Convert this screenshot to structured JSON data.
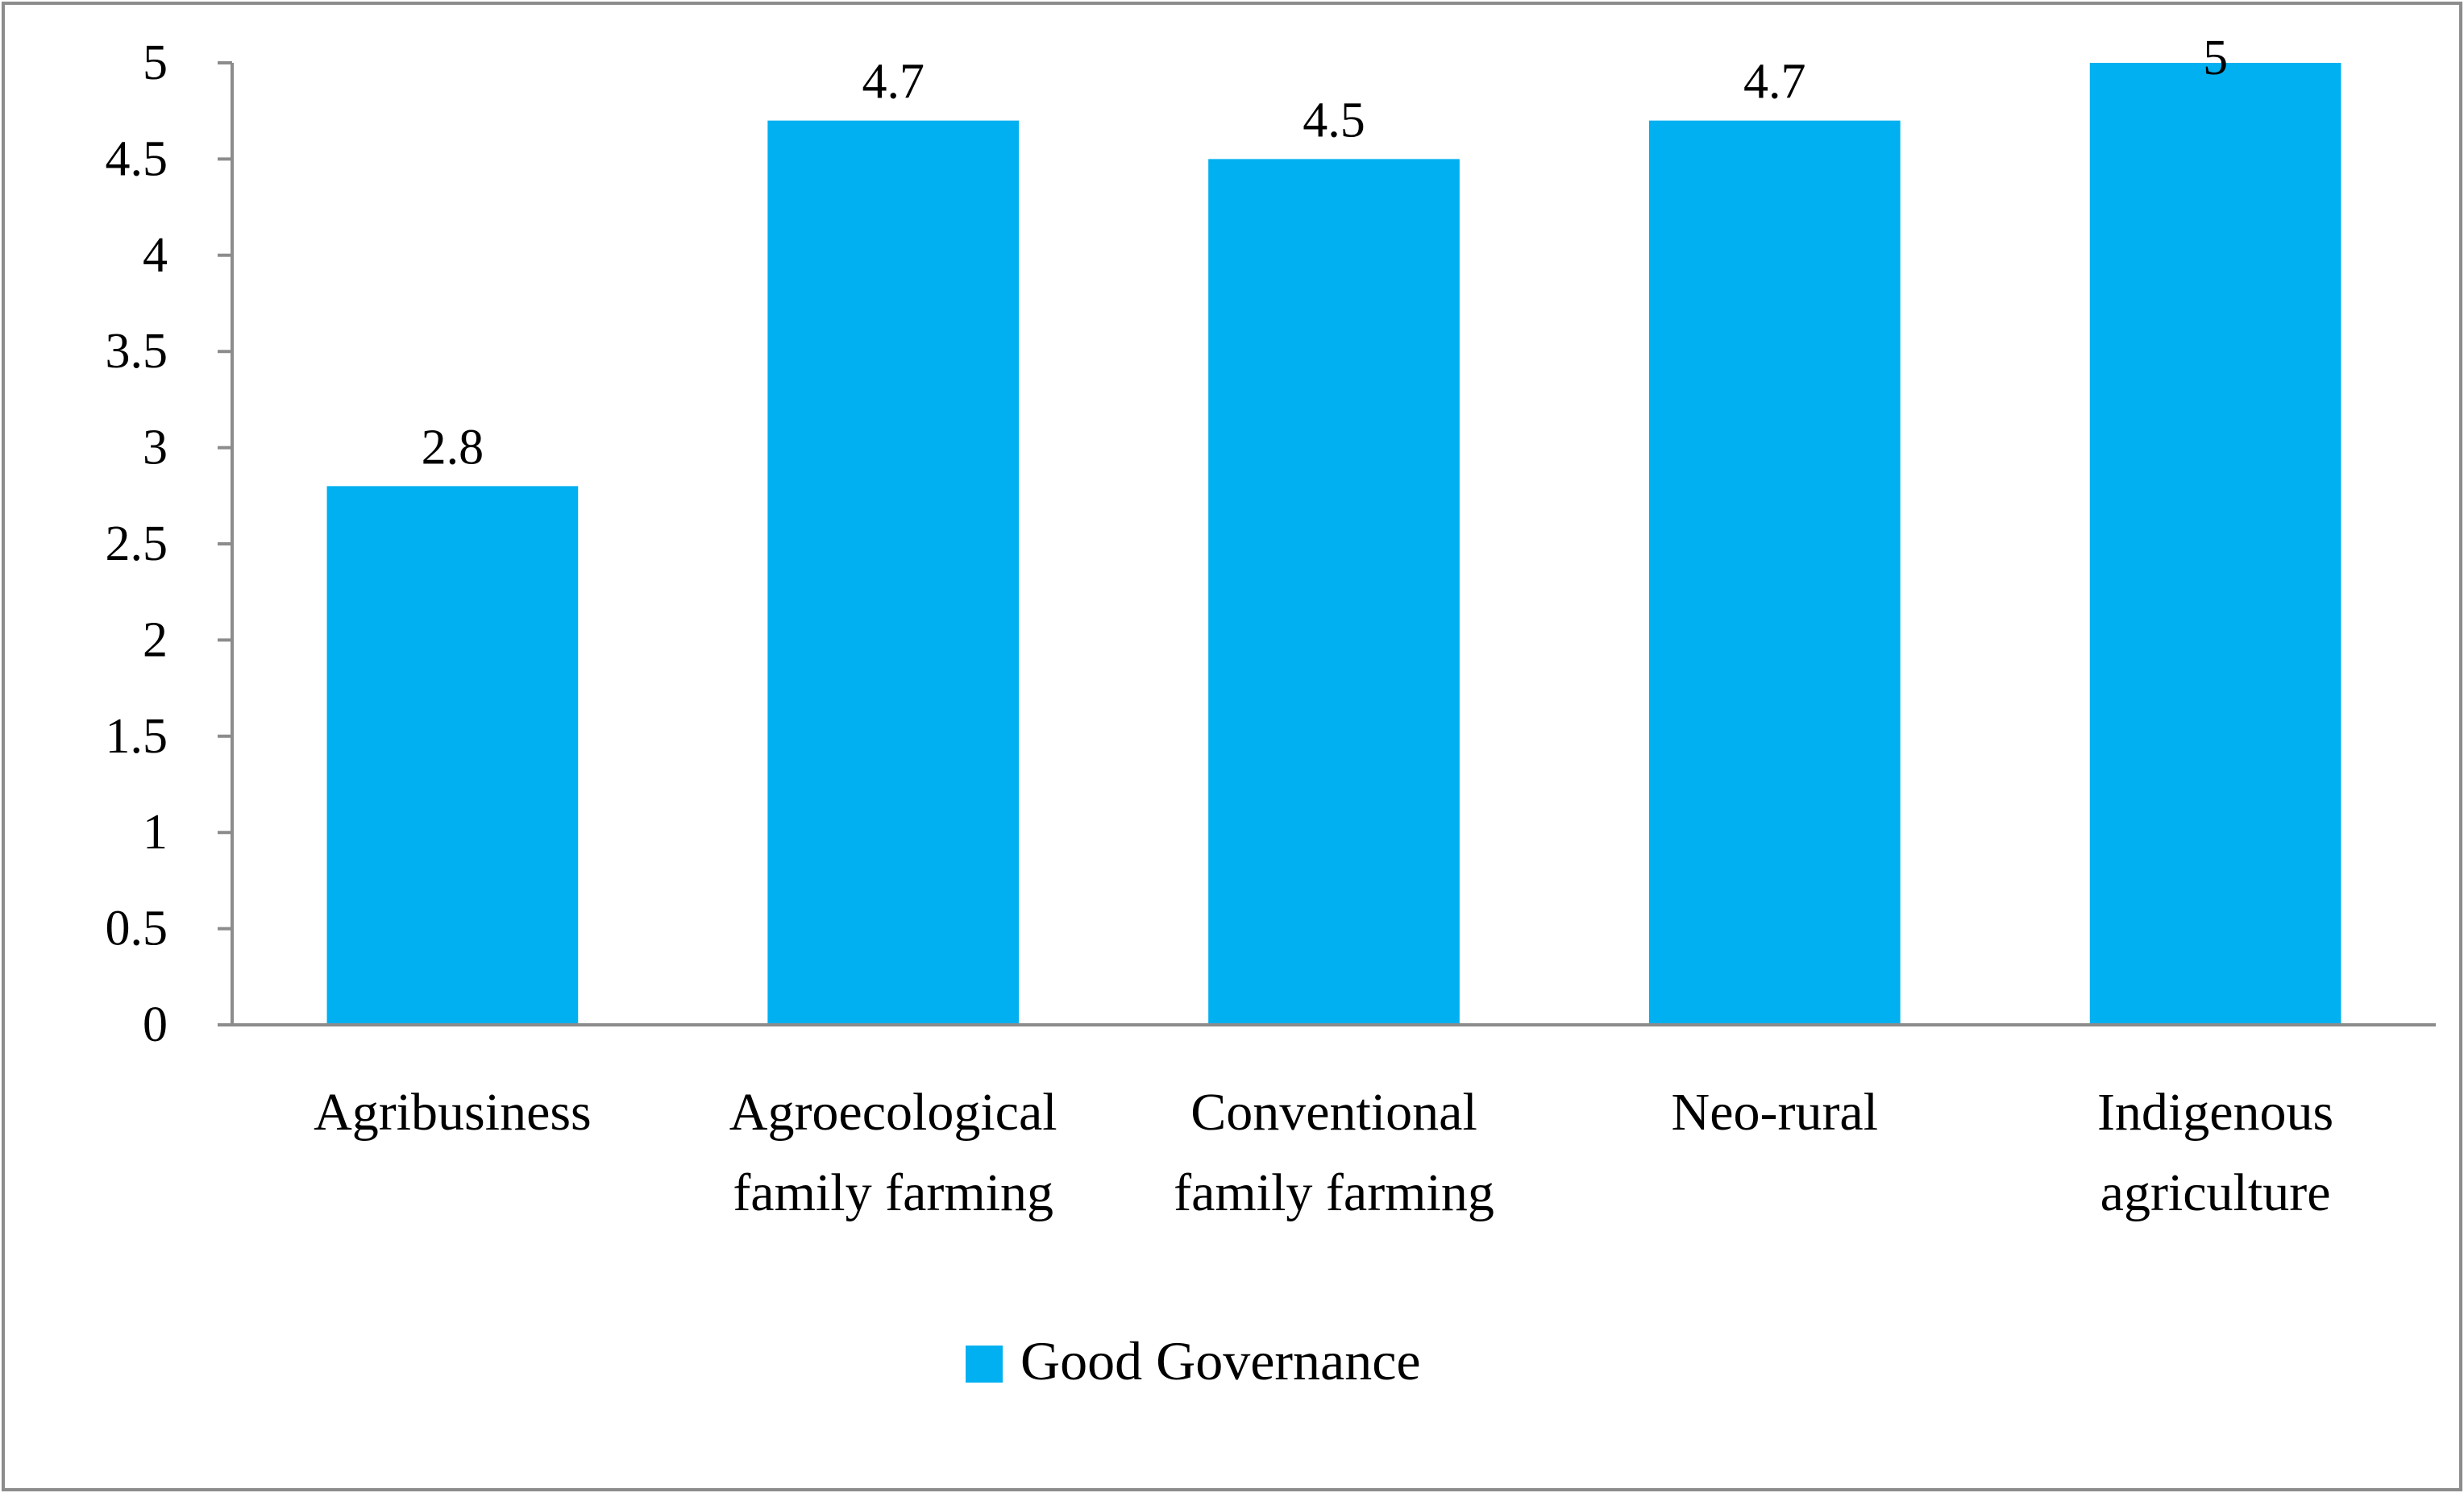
{
  "chart_data": {
    "type": "bar",
    "title": "",
    "xlabel": "",
    "ylabel": "",
    "categories": [
      [
        "Agribusiness"
      ],
      [
        "Agroecological",
        "family farming"
      ],
      [
        "Conventional",
        "family farming"
      ],
      [
        "Neo-rural"
      ],
      [
        "Indigenous",
        "agriculture"
      ]
    ],
    "series": [
      {
        "name": "Good Governance",
        "values": [
          2.8,
          4.7,
          4.5,
          4.7,
          5
        ],
        "color": "#00b0f0"
      }
    ],
    "data_labels": [
      "2.8",
      "4.7",
      "4.5",
      "4.7",
      "5"
    ],
    "ylim": [
      0,
      5
    ],
    "yticks": [
      0,
      0.5,
      1,
      1.5,
      2,
      2.5,
      3,
      3.5,
      4,
      4.5,
      5
    ],
    "grid": false,
    "legend_position": "bottom-center"
  },
  "colors": {
    "bar": "#00b0f0",
    "axis": "#8c8c8c",
    "frame": "#8c8c8c"
  }
}
